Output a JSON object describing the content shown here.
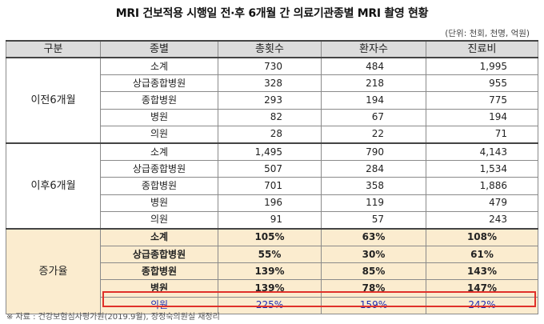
{
  "title": "MRI 건보적용 시행일 전·후 6개월 간 의료기관종별 MRI 촬영 현황",
  "unit_note": "(단위: 천회, 천명, 억원)",
  "headers": [
    "구분",
    "종별",
    "총횟수",
    "환자수",
    "진료비"
  ],
  "groups": [
    {
      "label": "이전6개월",
      "rows": [
        {
          "type": "소계",
          "count": "730",
          "patients": "484",
          "cost": "1,995"
        },
        {
          "type": "상급종합병원",
          "count": "328",
          "patients": "218",
          "cost": "955"
        },
        {
          "type": "종합병원",
          "count": "293",
          "patients": "194",
          "cost": "775"
        },
        {
          "type": "병원",
          "count": "82",
          "patients": "67",
          "cost": "194"
        },
        {
          "type": "의원",
          "count": "28",
          "patients": "22",
          "cost": "71"
        }
      ]
    },
    {
      "label": "이후6개월",
      "rows": [
        {
          "type": "소계",
          "count": "1,495",
          "patients": "790",
          "cost": "4,143"
        },
        {
          "type": "상급종합병원",
          "count": "507",
          "patients": "284",
          "cost": "1,534"
        },
        {
          "type": "종합병원",
          "count": "701",
          "patients": "358",
          "cost": "1,886"
        },
        {
          "type": "병원",
          "count": "196",
          "patients": "119",
          "cost": "479"
        },
        {
          "type": "의원",
          "count": "91",
          "patients": "57",
          "cost": "243"
        }
      ]
    },
    {
      "label": "증가율",
      "rows": [
        {
          "type": "소계",
          "count": "105%",
          "patients": "63%",
          "cost": "108%"
        },
        {
          "type": "상급종합병원",
          "count": "55%",
          "patients": "30%",
          "cost": "61%"
        },
        {
          "type": "종합병원",
          "count": "139%",
          "patients": "85%",
          "cost": "143%"
        },
        {
          "type": "병원",
          "count": "139%",
          "patients": "78%",
          "cost": "147%"
        },
        {
          "type": "의원",
          "count": "225%",
          "patients": "159%",
          "cost": "242%"
        }
      ]
    }
  ],
  "highlight_color": "#e0312a",
  "source": "※ 자료 : 건강보험심사평가원(2019.9월), 장정숙의원실 재정리"
}
